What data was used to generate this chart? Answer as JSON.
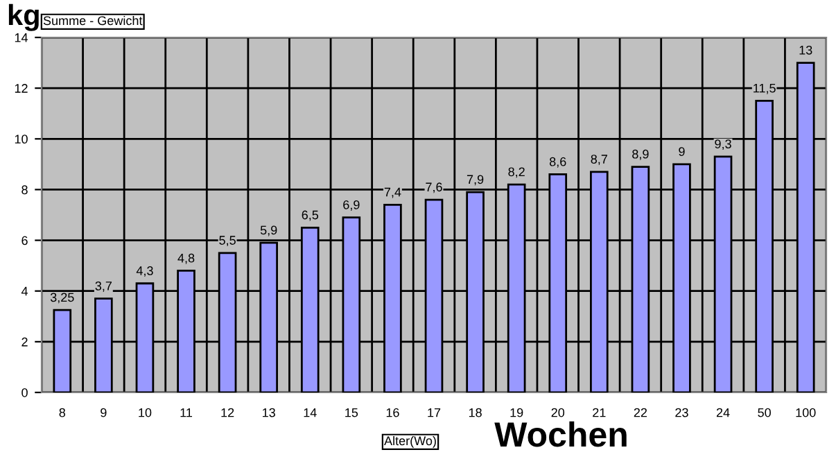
{
  "chart_data": {
    "type": "bar",
    "title": "Summe - Gewicht",
    "ylabel": "kg",
    "xlabel": "Alter(Wo)",
    "annotations": [
      "Wochen"
    ],
    "categories": [
      "8",
      "9",
      "10",
      "11",
      "12",
      "13",
      "14",
      "15",
      "16",
      "17",
      "18",
      "19",
      "20",
      "21",
      "22",
      "23",
      "24",
      "50",
      "100"
    ],
    "values": [
      3.25,
      3.7,
      4.3,
      4.8,
      5.5,
      5.9,
      6.5,
      6.9,
      7.4,
      7.6,
      7.9,
      8.2,
      8.6,
      8.7,
      8.9,
      9,
      9.3,
      11.5,
      13
    ],
    "value_labels": [
      "3,25",
      "3,7",
      "4,3",
      "4,8",
      "5,5",
      "5,9",
      "6,5",
      "6,9",
      "7,4",
      "7,6",
      "7,9",
      "8,2",
      "8,6",
      "8,7",
      "8,9",
      "9",
      "9,3",
      "11,5",
      "13"
    ],
    "color": "#9999ff",
    "ylim": [
      0,
      14
    ],
    "yticks": [
      0,
      2,
      4,
      6,
      8,
      10,
      12,
      14
    ],
    "grid": true,
    "legend": false
  }
}
